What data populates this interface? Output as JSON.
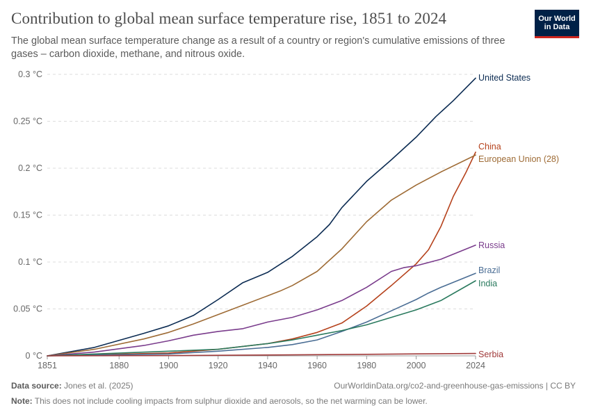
{
  "header": {
    "title": "Contribution to global mean surface temperature rise, 1851 to 2024",
    "subtitle": "The global mean surface temperature change as a result of a country or region's cumulative emissions of three gases – carbon dioxide, methane, and nitrous oxide.",
    "logo_line1": "Our World",
    "logo_line2": "in Data"
  },
  "footer": {
    "source_label": "Data source:",
    "source_text": "Jones et al. (2025)",
    "url_text": "OurWorldinData.org/co2-and-greenhouse-gas-emissions | CC BY",
    "note_label": "Note:",
    "note_text": "This does not include cooling impacts from sulphur dioxide and aerosols, so the net warming can be lower."
  },
  "colors": {
    "accent_logo": "#002147",
    "logo_stripe": "#ce261e"
  },
  "chart_data": {
    "type": "line",
    "xlim": [
      1851,
      2024
    ],
    "ylim": [
      0,
      0.3
    ],
    "x_ticks": [
      1851,
      1880,
      1900,
      1920,
      1940,
      1960,
      1980,
      2000,
      2024
    ],
    "y_ticks": [
      0,
      0.05,
      0.1,
      0.15,
      0.2,
      0.25,
      0.3
    ],
    "y_tick_labels": [
      "0 °C",
      "0.05 °C",
      "0.1 °C",
      "0.15 °C",
      "0.2 °C",
      "0.25 °C",
      "0.3 °C"
    ],
    "grid": "horizontal dashed",
    "series": [
      {
        "name": "United States",
        "color": "#0b2b52",
        "x": [
          1851,
          1870,
          1890,
          1900,
          1910,
          1920,
          1930,
          1940,
          1950,
          1960,
          1965,
          1970,
          1980,
          1990,
          2000,
          2008,
          2015,
          2024
        ],
        "y": [
          0,
          0.009,
          0.024,
          0.032,
          0.043,
          0.06,
          0.078,
          0.089,
          0.106,
          0.127,
          0.14,
          0.158,
          0.186,
          0.209,
          0.233,
          0.255,
          0.272,
          0.296
        ]
      },
      {
        "name": "China",
        "color": "#b5411b",
        "x": [
          1851,
          1900,
          1920,
          1940,
          1950,
          1960,
          1970,
          1980,
          1990,
          2000,
          2005,
          2010,
          2015,
          2020,
          2024
        ],
        "y": [
          0,
          0.003,
          0.007,
          0.013,
          0.018,
          0.025,
          0.035,
          0.053,
          0.075,
          0.098,
          0.113,
          0.138,
          0.17,
          0.195,
          0.217
        ]
      },
      {
        "name": "European Union (28)",
        "color": "#9e6b35",
        "x": [
          1851,
          1870,
          1890,
          1900,
          1910,
          1920,
          1930,
          1940,
          1945,
          1950,
          1960,
          1970,
          1980,
          1990,
          2000,
          2010,
          2024
        ],
        "y": [
          0,
          0.007,
          0.018,
          0.025,
          0.034,
          0.044,
          0.054,
          0.064,
          0.069,
          0.075,
          0.09,
          0.114,
          0.143,
          0.166,
          0.182,
          0.196,
          0.214
        ]
      },
      {
        "name": "Russia",
        "color": "#7a3c8c",
        "x": [
          1851,
          1870,
          1890,
          1900,
          1910,
          1920,
          1930,
          1940,
          1950,
          1960,
          1970,
          1980,
          1990,
          1995,
          2000,
          2010,
          2024
        ],
        "y": [
          0,
          0.004,
          0.011,
          0.016,
          0.022,
          0.026,
          0.029,
          0.036,
          0.041,
          0.049,
          0.059,
          0.073,
          0.09,
          0.094,
          0.096,
          0.103,
          0.118
        ]
      },
      {
        "name": "Brazil",
        "color": "#4a6d94",
        "x": [
          1851,
          1900,
          1920,
          1940,
          1950,
          1960,
          1970,
          1980,
          1990,
          2000,
          2005,
          2010,
          2024
        ],
        "y": [
          0,
          0.002,
          0.005,
          0.009,
          0.012,
          0.017,
          0.026,
          0.036,
          0.048,
          0.06,
          0.067,
          0.073,
          0.088
        ]
      },
      {
        "name": "India",
        "color": "#2a7a5e",
        "x": [
          1851,
          1900,
          1920,
          1940,
          1950,
          1960,
          1970,
          1980,
          1990,
          2000,
          2010,
          2024
        ],
        "y": [
          0,
          0.005,
          0.007,
          0.013,
          0.017,
          0.022,
          0.027,
          0.033,
          0.041,
          0.049,
          0.059,
          0.08
        ]
      },
      {
        "name": "Serbia",
        "color": "#a03a3a",
        "x": [
          1851,
          1900,
          1950,
          1980,
          2000,
          2024
        ],
        "y": [
          0,
          0.0003,
          0.001,
          0.0016,
          0.0021,
          0.0025
        ]
      }
    ]
  }
}
